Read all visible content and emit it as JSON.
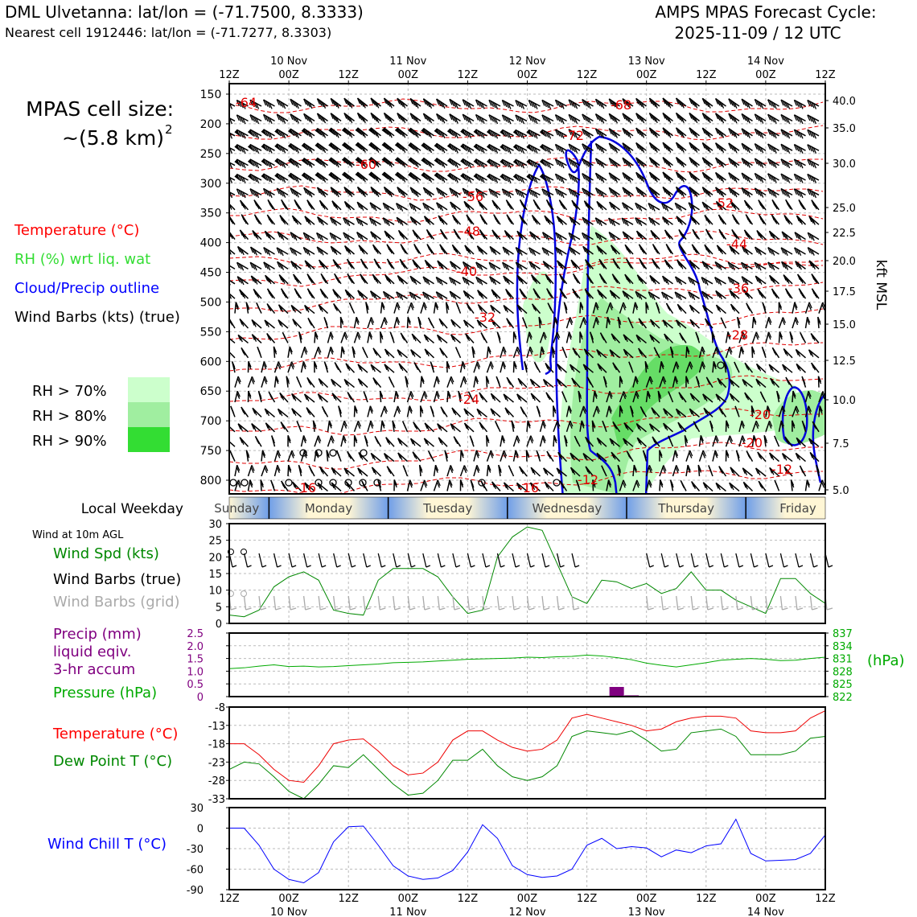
{
  "header": {
    "title_left": "DML Ulvetanna: lat/lon = (-71.7500, 8.3333)",
    "subtitle_left": "Nearest cell 1912446: lat/lon = (-71.7277, 8.3303)",
    "title_right_1": "AMPS MPAS Forecast Cycle:",
    "title_right_2": "2025-11-09 / 12 UTC"
  },
  "sidebar": {
    "cell_size_1": "MPAS cell size:",
    "cell_size_2": "~(5.8 km)",
    "cell_size_sup": "2",
    "legend_temp": "Temperature (°C)",
    "legend_rh": "RH (%) wrt liq. wat",
    "legend_cloud": "Cloud/Precip outline",
    "legend_barbs": "Wind Barbs (kts) (true)",
    "rh_70": "RH > 70%",
    "rh_80": "RH > 80%",
    "rh_90": "RH > 90%"
  },
  "colors": {
    "temperature": "#e00000",
    "rh": "#33dd33",
    "cloud": "#0000dd",
    "precip": "#800080",
    "pressure": "#00aa00",
    "dewpoint": "#008800",
    "windchill": "#0000ff",
    "rh70": "#ccffcc",
    "rh80": "#a0eea0",
    "rh90": "#33dd33",
    "weekday_day": "#fff6d5",
    "weekday_night": "#6f9ee8"
  },
  "time_axis": {
    "ticks": [
      "12Z",
      "00Z",
      "12Z",
      "00Z",
      "12Z",
      "00Z",
      "12Z",
      "00Z",
      "12Z",
      "00Z",
      "12Z"
    ],
    "dates": [
      "10 Nov",
      "11 Nov",
      "12 Nov",
      "13 Nov",
      "14 Nov"
    ]
  },
  "profile": {
    "pressure_ticks": [
      "150",
      "200",
      "250",
      "300",
      "350",
      "400",
      "450",
      "500",
      "550",
      "600",
      "650",
      "700",
      "750",
      "800"
    ],
    "kft_ticks": [
      "40.0",
      "35.0",
      "30.0",
      "25.0",
      "22.5",
      "20.0",
      "17.5",
      "15.0",
      "12.5",
      "10.0",
      "7.5",
      "5.0"
    ],
    "kft_label": "kft MSL",
    "temp_labels": [
      "-64",
      "-68",
      "-72",
      "-60",
      "-56",
      "-52",
      "-48",
      "-44",
      "-40",
      "-36",
      "-32",
      "-28",
      "-24",
      "-20",
      "-16",
      "-20",
      "-16",
      "-12",
      "-12"
    ]
  },
  "weekday": {
    "label": "Local Weekday",
    "days": [
      "Sunday",
      "Monday",
      "Tuesday",
      "Wednesday",
      "Thursday",
      "Friday"
    ]
  },
  "panels": {
    "wind_header": "Wind at 10m AGL",
    "wind_spd_label": "Wind Spd (kts)",
    "wind_barbs_true": "Wind Barbs (true)",
    "wind_barbs_grid": "Wind Barbs (grid)",
    "precip_1": "Precip (mm)",
    "precip_2": "liquid eqiv.",
    "precip_3": "3-hr accum",
    "pressure_label": "Pressure (hPa)",
    "hpa_label": "(hPa)",
    "temp_label": "Temperature (°C)",
    "dew_label": "Dew Point T (°C)",
    "chill_label": "Wind Chill T (°C)"
  },
  "chart_data": [
    {
      "type": "line",
      "name": "wind speed",
      "x_hours": [
        0,
        3,
        6,
        9,
        12,
        15,
        18,
        21,
        24,
        27,
        30,
        33,
        36,
        39,
        42,
        45,
        48,
        51,
        54,
        57,
        60,
        63,
        66,
        69,
        72,
        75,
        78,
        81,
        84,
        87,
        90,
        93,
        96,
        99,
        102,
        105,
        108,
        111,
        114,
        117,
        120
      ],
      "series": [
        {
          "name": "Wind Spd (kts)",
          "values": [
            2.5,
            2,
            4,
            11,
            14,
            15.5,
            13,
            4,
            3,
            2.5,
            13,
            16.5,
            16.5,
            16.5,
            14,
            8,
            3,
            4,
            20,
            26,
            29,
            28,
            18,
            8,
            6,
            13,
            12.5,
            10.5,
            12,
            9,
            10.5,
            15.5,
            10,
            10,
            7,
            5,
            3,
            13.5,
            13.5,
            9,
            6
          ]
        }
      ],
      "yticks": [
        "30",
        "25",
        "20",
        "15",
        "10",
        "5",
        "0"
      ],
      "ylim": [
        0,
        30
      ]
    },
    {
      "type": "bar",
      "name": "precip",
      "yticks_left": [
        "2.5",
        "2.0",
        "1.5",
        "1.0",
        "0.5",
        "0"
      ],
      "ylim": [
        0,
        2.5
      ],
      "bars": [
        {
          "hours": 78,
          "value": 0.38
        },
        {
          "hours": 81,
          "value": 0.05
        }
      ],
      "pressure_ticks": [
        "837",
        "834",
        "831",
        "828",
        "825",
        "822"
      ],
      "pressure_ylim": [
        822,
        837
      ],
      "pressure_values": [
        828.6,
        828.8,
        829.2,
        829.5,
        829.1,
        829.2,
        829.0,
        829.1,
        829.3,
        829.5,
        829.7,
        830.0,
        830.1,
        830.2,
        830.4,
        830.6,
        830.8,
        830.9,
        831.0,
        831.1,
        831.3,
        831.2,
        831.4,
        831.5,
        831.8,
        831.6,
        831.2,
        830.7,
        829.9,
        829.4,
        829.0,
        829.5,
        830.0,
        830.6,
        830.8,
        831.0,
        830.8,
        830.5,
        830.6,
        831.0,
        831.3
      ]
    },
    {
      "type": "line",
      "name": "temperature",
      "yticks": [
        "-8",
        "-13",
        "-18",
        "-23",
        "-28",
        "-33"
      ],
      "ylim": [
        -33,
        -8
      ],
      "series": [
        {
          "name": "Temperature (°C)",
          "values": [
            -18,
            -18,
            -21,
            -25,
            -28,
            -28.5,
            -24,
            -18,
            -17,
            -16.7,
            -20,
            -24,
            -26.5,
            -26,
            -23,
            -17,
            -14.5,
            -14.5,
            -17,
            -19,
            -20,
            -19.5,
            -17,
            -11,
            -10,
            -11,
            -12,
            -13,
            -14.5,
            -14,
            -12,
            -11,
            -10.5,
            -10.5,
            -11,
            -14.5,
            -15,
            -15,
            -14.5,
            -11,
            -9
          ]
        },
        {
          "name": "Dew Point T (°C)",
          "values": [
            -25,
            -23,
            -23.5,
            -27,
            -31,
            -33,
            -29,
            -24,
            -24.5,
            -21,
            -25,
            -29,
            -32,
            -31.5,
            -28,
            -22.5,
            -22.5,
            -19.5,
            -24,
            -27,
            -28,
            -27,
            -24,
            -16,
            -14.5,
            -15,
            -15.5,
            -14.5,
            -17,
            -20,
            -19.5,
            -15,
            -14.5,
            -14,
            -16,
            -21,
            -21,
            -21,
            -20,
            -16.5,
            -16
          ]
        }
      ]
    },
    {
      "type": "line",
      "name": "wind chill",
      "yticks": [
        "30",
        "0",
        "-30",
        "-60",
        "-90"
      ],
      "ylim": [
        -90,
        30
      ],
      "series": [
        {
          "name": "Wind Chill T (°C)",
          "values": [
            0,
            0,
            -25,
            -60,
            -75,
            -80,
            -65,
            -20,
            2,
            3,
            -25,
            -55,
            -70,
            -75,
            -73,
            -62,
            -35,
            5,
            -15,
            -55,
            -68,
            -72,
            -70,
            -60,
            -25,
            -15,
            -30,
            -27,
            -29,
            -42,
            -32,
            -36,
            -26,
            -23,
            13,
            -37,
            -48,
            -47,
            -46,
            -37,
            -10
          ]
        }
      ]
    }
  ]
}
